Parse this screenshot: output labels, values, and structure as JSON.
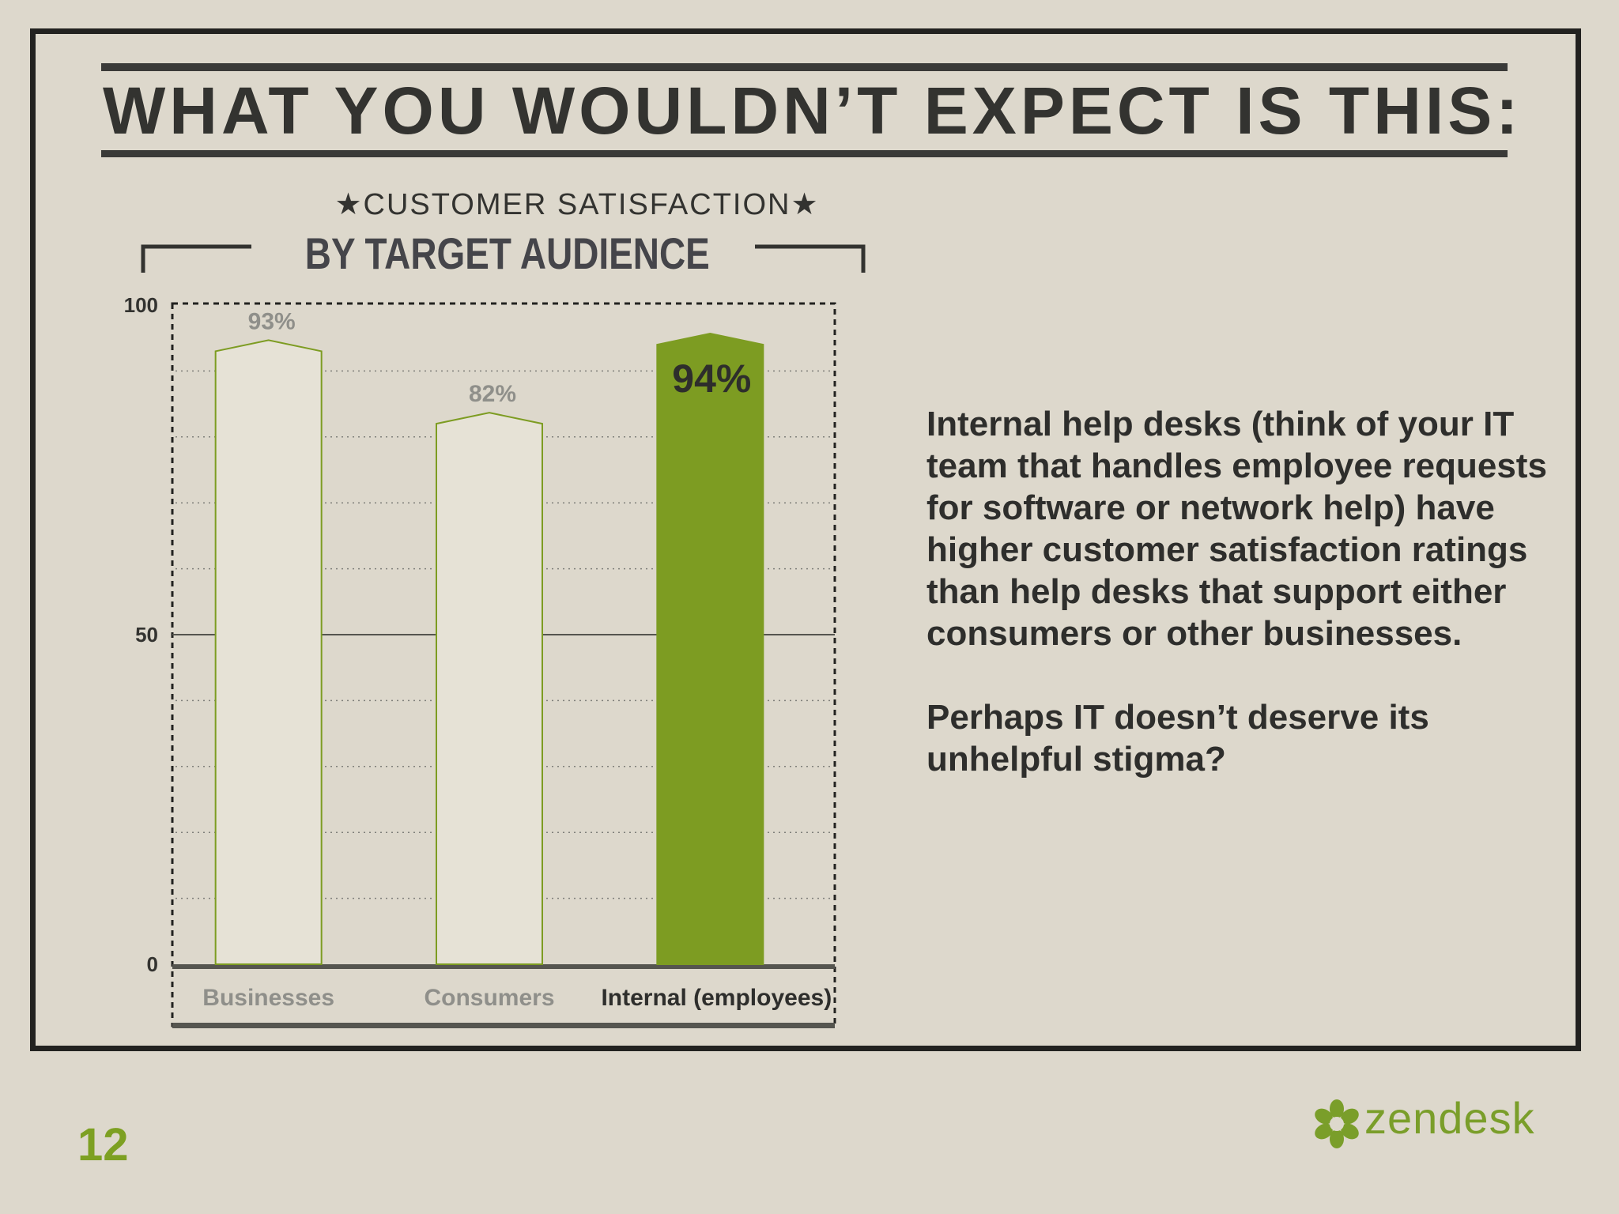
{
  "title": "WHAT YOU WOULDN’T EXPECT IS THIS:",
  "chart_data": {
    "type": "bar",
    "title": "★CUSTOMER SATISFACTION★",
    "subtitle": "BY TARGET AUDIENCE",
    "categories": [
      "Businesses",
      "Consumers",
      "Internal (employees)"
    ],
    "values": [
      93,
      82,
      94
    ],
    "value_labels": [
      "93%",
      "82%",
      "94%"
    ],
    "highlighted_index": 2,
    "ylim": [
      0,
      100
    ],
    "yticks": [
      0,
      50,
      100
    ],
    "ytick_labels": [
      "0",
      "50",
      "100"
    ],
    "grid": true,
    "colors": {
      "outline": "#7d9c22",
      "highlight": "#7d9c22",
      "muted_text": "#8f8f8a"
    }
  },
  "description": {
    "paragraph1": "Internal help desks (think of your IT team that handles employee requests for software or network help) have higher customer satisfaction ratings than help desks that support either consumers or other businesses.",
    "paragraph2": "Perhaps IT doesn’t deserve its unhelpful stigma?"
  },
  "footer": {
    "page_number": "12",
    "logo_text": "zendesk",
    "logo_icon": "zendesk-flower-icon"
  }
}
